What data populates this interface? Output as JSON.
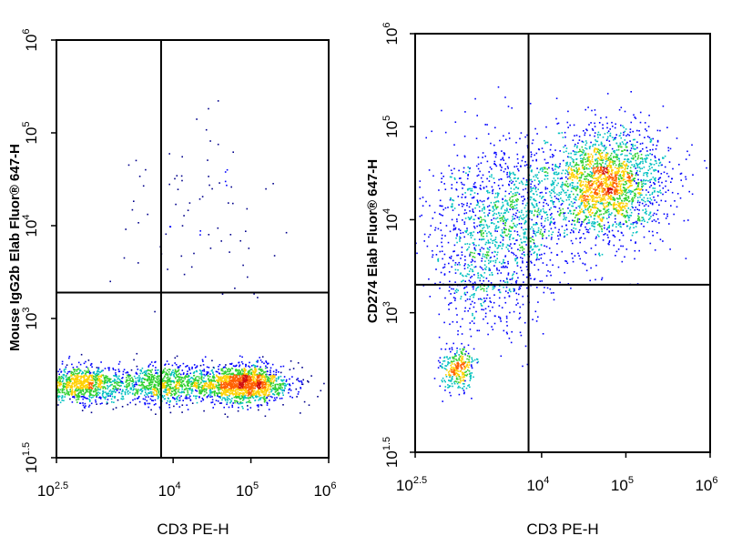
{
  "chart_data": [
    {
      "type": "scatter",
      "plot_kind": "flow cytometry density plot",
      "xlabel": "CD3 PE-H",
      "ylabel": "Mouse IgG2b Elab Fluor® 647-H",
      "xscale": "log",
      "yscale": "log",
      "xlim": [
        316,
        1000000
      ],
      "ylim": [
        31.6,
        1000000
      ],
      "x_tick_labels": [
        {
          "base": "10",
          "exp": "2.5"
        },
        {
          "base": "10",
          "exp": "4"
        },
        {
          "base": "10",
          "exp": "5"
        },
        {
          "base": "10",
          "exp": "6"
        }
      ],
      "y_tick_labels": [
        {
          "base": "10",
          "exp": "1.5"
        },
        {
          "base": "10",
          "exp": "3"
        },
        {
          "base": "10",
          "exp": "4"
        },
        {
          "base": "10",
          "exp": "5"
        },
        {
          "base": "10",
          "exp": "6"
        }
      ],
      "quadrant_gate": {
        "x": 7000,
        "y": 1900
      },
      "color_scale": [
        "#00008b",
        "#0000ff",
        "#00c0c0",
        "#30d030",
        "#ffd000",
        "#ff6000",
        "#d01010"
      ],
      "populations": [
        {
          "x_center": 650,
          "y_center": 200,
          "x_spread_log": 0.28,
          "y_spread_log": 0.1,
          "count": 900
        },
        {
          "x_center": 8000,
          "y_center": 200,
          "x_spread_log": 0.35,
          "y_spread_log": 0.1,
          "count": 900
        },
        {
          "x_center": 80000,
          "y_center": 200,
          "x_spread_log": 0.3,
          "y_spread_log": 0.1,
          "count": 1500
        },
        {
          "x_center": 20000,
          "y_center": 15000,
          "x_spread_log": 0.55,
          "y_spread_log": 0.45,
          "count": 80
        }
      ]
    },
    {
      "type": "scatter",
      "plot_kind": "flow cytometry density plot",
      "xlabel": "CD3 PE-H",
      "ylabel": "CD274 Elab Fluor® 647-H",
      "xscale": "log",
      "yscale": "log",
      "xlim": [
        316,
        1000000
      ],
      "ylim": [
        31.6,
        1000000
      ],
      "x_tick_labels": [
        {
          "base": "10",
          "exp": "2.5"
        },
        {
          "base": "10",
          "exp": "4"
        },
        {
          "base": "10",
          "exp": "5"
        },
        {
          "base": "10",
          "exp": "6"
        }
      ],
      "y_tick_labels": [
        {
          "base": "10",
          "exp": "1.5"
        },
        {
          "base": "10",
          "exp": "3"
        },
        {
          "base": "10",
          "exp": "4"
        },
        {
          "base": "10",
          "exp": "5"
        },
        {
          "base": "10",
          "exp": "6"
        }
      ],
      "quadrant_gate": {
        "x": 7000,
        "y": 2000
      },
      "color_scale": [
        "#00008b",
        "#0000ff",
        "#00c0c0",
        "#30d030",
        "#ffd000",
        "#ff6000",
        "#d01010"
      ],
      "populations": [
        {
          "x_center": 1000,
          "y_center": 250,
          "x_spread_log": 0.1,
          "y_spread_log": 0.12,
          "count": 300
        },
        {
          "x_center": 60000,
          "y_center": 25000,
          "x_spread_log": 0.35,
          "y_spread_log": 0.3,
          "count": 2000
        },
        {
          "x_center": 4000,
          "y_center": 12000,
          "x_spread_log": 0.45,
          "y_spread_log": 0.4,
          "count": 1200
        },
        {
          "x_center": 2000,
          "y_center": 2500,
          "x_spread_log": 0.3,
          "y_spread_log": 0.35,
          "count": 400
        }
      ]
    }
  ]
}
